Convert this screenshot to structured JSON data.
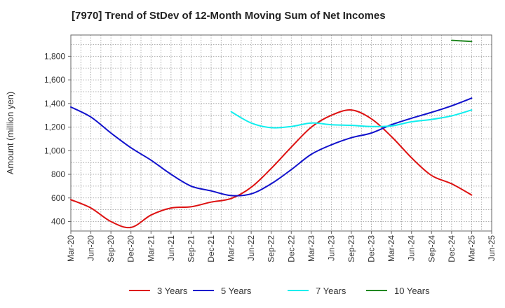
{
  "chart_data": {
    "type": "line",
    "title": "[7970]  Trend of StDev of 12-Month Moving Sum of Net Incomes",
    "ylabel": "Amount (million yen)",
    "xlabel": "",
    "ylim": [
      320,
      1980
    ],
    "yticks": [
      400,
      600,
      800,
      1000,
      1200,
      1400,
      1600,
      1800
    ],
    "ytick_labels": [
      "400",
      "600",
      "800",
      "1,000",
      "1,200",
      "1,400",
      "1,600",
      "1,800"
    ],
    "xtick_labels": [
      "Mar-20",
      "Jun-20",
      "Sep-20",
      "Dec-20",
      "Mar-21",
      "Jun-21",
      "Sep-21",
      "Dec-21",
      "Mar-22",
      "Jun-22",
      "Sep-22",
      "Dec-22",
      "Mar-23",
      "Jun-23",
      "Sep-23",
      "Dec-23",
      "Mar-24",
      "Jun-24",
      "Sep-24",
      "Dec-24",
      "Mar-25",
      "Jun-25"
    ],
    "grid": true,
    "legend_position": "bottom",
    "series": [
      {
        "name": "3 Years",
        "color": "#dd1111",
        "x": [
          "Mar-20",
          "Jun-20",
          "Sep-20",
          "Dec-20",
          "Mar-21",
          "Jun-21",
          "Sep-21",
          "Dec-21",
          "Mar-22",
          "Jun-22",
          "Sep-22",
          "Dec-22",
          "Mar-23",
          "Jun-23",
          "Sep-23",
          "Dec-23",
          "Mar-24",
          "Jun-24",
          "Sep-24",
          "Dec-24",
          "Mar-25"
        ],
        "values": [
          585,
          515,
          400,
          350,
          455,
          515,
          525,
          565,
          595,
          690,
          850,
          1030,
          1200,
          1300,
          1345,
          1270,
          1120,
          940,
          790,
          720,
          625
        ]
      },
      {
        "name": "5 Years",
        "color": "#1111cc",
        "x": [
          "Mar-20",
          "Jun-20",
          "Sep-20",
          "Dec-20",
          "Mar-21",
          "Jun-21",
          "Sep-21",
          "Dec-21",
          "Mar-22",
          "Jun-22",
          "Sep-22",
          "Dec-22",
          "Mar-23",
          "Jun-23",
          "Sep-23",
          "Dec-23",
          "Mar-24",
          "Jun-24",
          "Sep-24",
          "Dec-24",
          "Mar-25"
        ],
        "values": [
          1370,
          1285,
          1150,
          1025,
          920,
          800,
          700,
          660,
          620,
          635,
          720,
          840,
          970,
          1050,
          1110,
          1150,
          1220,
          1275,
          1325,
          1380,
          1445
        ]
      },
      {
        "name": "7 Years",
        "color": "#11eeee",
        "x": [
          "Mar-22",
          "Jun-22",
          "Sep-22",
          "Dec-22",
          "Mar-23",
          "Jun-23",
          "Sep-23",
          "Dec-23",
          "Mar-24",
          "Jun-24",
          "Sep-24",
          "Dec-24",
          "Mar-25"
        ],
        "values": [
          1330,
          1235,
          1195,
          1205,
          1235,
          1220,
          1215,
          1205,
          1210,
          1245,
          1265,
          1295,
          1345
        ]
      },
      {
        "name": "10 Years",
        "color": "#228822",
        "x": [
          "Dec-24",
          "Mar-25"
        ],
        "values": [
          1935,
          1925
        ]
      }
    ]
  }
}
